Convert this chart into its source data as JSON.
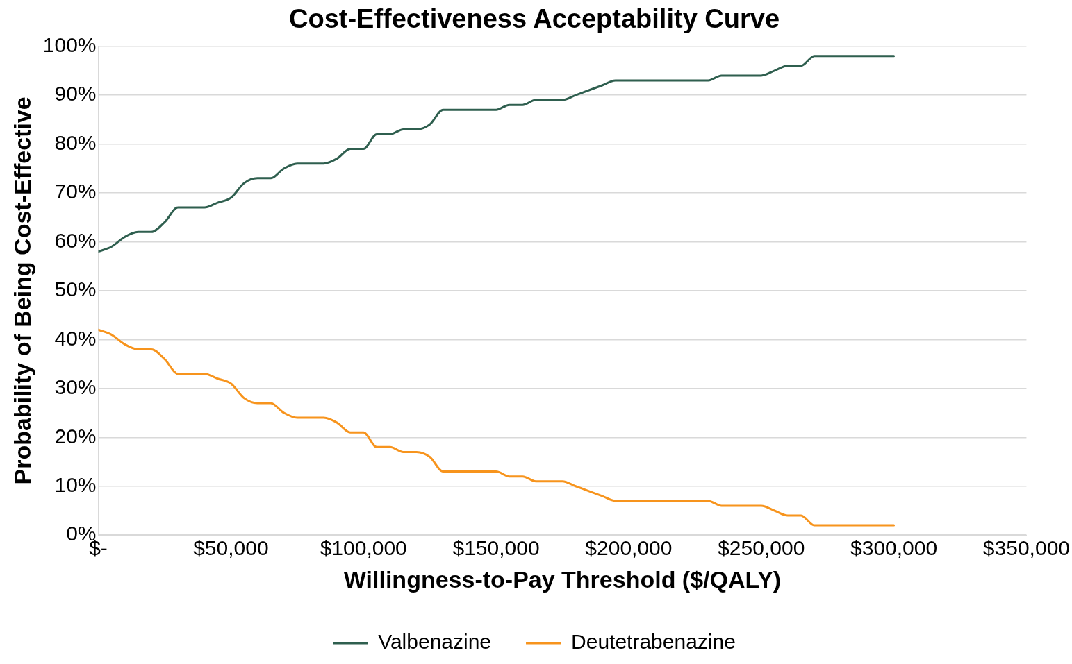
{
  "chart_data": {
    "type": "line",
    "title": "Cost-Effectiveness Acceptability Curve",
    "xlabel": "Willingness-to-Pay Threshold ($/QALY)",
    "ylabel": "Probability of Being Cost-Effective",
    "x": [
      0,
      5000,
      10000,
      15000,
      20000,
      25000,
      30000,
      35000,
      40000,
      45000,
      50000,
      55000,
      60000,
      65000,
      70000,
      75000,
      80000,
      85000,
      90000,
      95000,
      100000,
      105000,
      110000,
      115000,
      120000,
      125000,
      130000,
      135000,
      140000,
      145000,
      150000,
      155000,
      160000,
      165000,
      170000,
      175000,
      180000,
      185000,
      190000,
      195000,
      200000,
      205000,
      210000,
      215000,
      220000,
      225000,
      230000,
      235000,
      240000,
      245000,
      250000,
      255000,
      260000,
      265000,
      270000,
      275000,
      280000,
      285000,
      290000,
      295000,
      300000
    ],
    "series": [
      {
        "name": "Valbenazine",
        "color": "#2f5f4f",
        "values": [
          58,
          59,
          61,
          62,
          62,
          64,
          67,
          67,
          67,
          68,
          69,
          72,
          73,
          73,
          75,
          76,
          76,
          76,
          77,
          79,
          79,
          82,
          82,
          83,
          83,
          84,
          87,
          87,
          87,
          87,
          87,
          88,
          88,
          89,
          89,
          89,
          90,
          91,
          92,
          93,
          93,
          93,
          93,
          93,
          93,
          93,
          93,
          94,
          94,
          94,
          94,
          95,
          96,
          96,
          98,
          98,
          98,
          98,
          98,
          98,
          98
        ]
      },
      {
        "name": "Deutetrabenazine",
        "color": "#f7941d",
        "values": [
          42,
          41,
          39,
          38,
          38,
          36,
          33,
          33,
          33,
          32,
          31,
          28,
          27,
          27,
          25,
          24,
          24,
          24,
          23,
          21,
          21,
          18,
          18,
          17,
          17,
          16,
          13,
          13,
          13,
          13,
          13,
          12,
          12,
          11,
          11,
          11,
          10,
          9,
          8,
          7,
          7,
          7,
          7,
          7,
          7,
          7,
          7,
          6,
          6,
          6,
          6,
          5,
          4,
          4,
          2,
          2,
          2,
          2,
          2,
          2,
          2
        ]
      }
    ],
    "xlim": [
      0,
      350000
    ],
    "xticks": [
      {
        "value": 0,
        "label": "$-"
      },
      {
        "value": 50000,
        "label": "$50,000"
      },
      {
        "value": 100000,
        "label": "$100,000"
      },
      {
        "value": 150000,
        "label": "$150,000"
      },
      {
        "value": 200000,
        "label": "$200,000"
      },
      {
        "value": 250000,
        "label": "$250,000"
      },
      {
        "value": 300000,
        "label": "$300,000"
      },
      {
        "value": 350000,
        "label": "$350,000"
      }
    ],
    "ylim": [
      0,
      100
    ],
    "yticks": [
      {
        "value": 0,
        "label": "0%"
      },
      {
        "value": 10,
        "label": "10%"
      },
      {
        "value": 20,
        "label": "20%"
      },
      {
        "value": 30,
        "label": "30%"
      },
      {
        "value": 40,
        "label": "40%"
      },
      {
        "value": 50,
        "label": "50%"
      },
      {
        "value": 60,
        "label": "60%"
      },
      {
        "value": 70,
        "label": "70%"
      },
      {
        "value": 80,
        "label": "80%"
      },
      {
        "value": 90,
        "label": "90%"
      },
      {
        "value": 100,
        "label": "100%"
      }
    ],
    "grid": "y",
    "legend": "bottom",
    "marker": "none",
    "line_style": "solid"
  }
}
